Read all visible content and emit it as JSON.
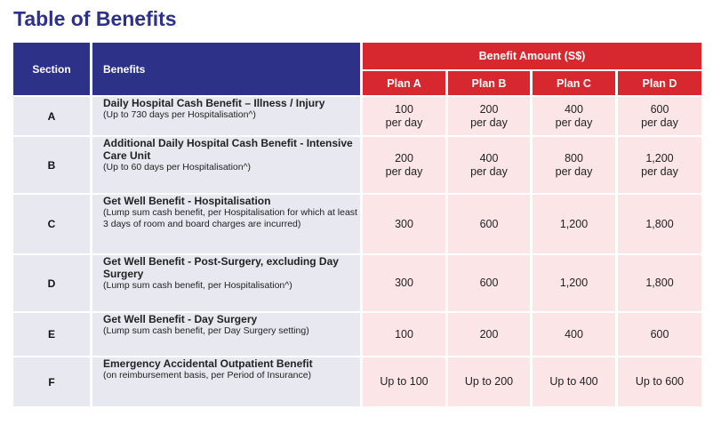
{
  "title": "Table of Benefits",
  "headers": {
    "section": "Section",
    "benefits": "Benefits",
    "amount": "Benefit Amount (S$)",
    "plans": [
      "Plan A",
      "Plan B",
      "Plan C",
      "Plan D"
    ]
  },
  "colors": {
    "navy": "#2e3188",
    "red": "#d7282f",
    "pink": "#fbe5e7",
    "grey": "#e7e8f0"
  },
  "rows": [
    {
      "section": "A",
      "title": "Daily Hospital Cash Benefit – Illness / Injury",
      "sub": "(Up to 730 days per Hospitalisation^)",
      "values": [
        "100\nper day",
        "200\nper day",
        "400\nper day",
        "600\nper day"
      ]
    },
    {
      "section": "B",
      "title": "Additional Daily Hospital Cash Benefit - Intensive Care Unit",
      "sub": "(Up to 60 days per Hospitalisation^)",
      "values": [
        "200\nper day",
        "400\nper day",
        "800\nper day",
        "1,200\nper day"
      ]
    },
    {
      "section": "C",
      "title": "Get Well Benefit - Hospitalisation",
      "sub": "(Lump sum cash benefit, per Hospitalisation for which at least 3 days of room and board charges are incurred)",
      "values": [
        "300",
        "600",
        "1,200",
        "1,800"
      ]
    },
    {
      "section": "D",
      "title": "Get Well Benefit - Post-Surgery, excluding Day Surgery",
      "sub": "(Lump sum cash benefit, per Hospitalisation^)",
      "values": [
        "300",
        "600",
        "1,200",
        "1,800"
      ]
    },
    {
      "section": "E",
      "title": "Get Well Benefit - Day Surgery",
      "sub": "(Lump sum cash benefit, per Day Surgery setting)",
      "values": [
        "100",
        "200",
        "400",
        "600"
      ]
    },
    {
      "section": "F",
      "title": "Emergency Accidental Outpatient Benefit",
      "sub": "(on reimbursement basis, per Period of Insurance)",
      "values": [
        "Up to 100",
        "Up to 200",
        "Up to 400",
        "Up to 600"
      ]
    }
  ]
}
